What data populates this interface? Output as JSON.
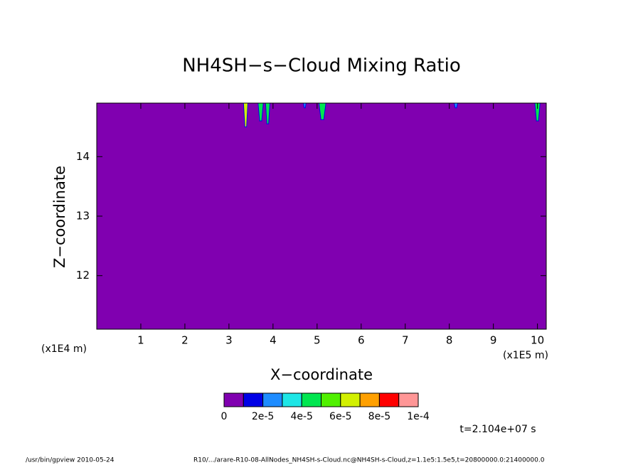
{
  "chart_data": {
    "type": "contour",
    "title": "NH4SH−s−Cloud Mixing Ratio",
    "x_label": "X−coordinate",
    "y_label": "Z−coordinate",
    "x_unit": "(x1E5 m)",
    "y_unit": "(x1E4 m)",
    "time_label": "t=2.104e+07 s",
    "footer_left": "/usr/bin/gpview   2010-05-24",
    "footer_right": "R10/.../arare-R10-08-AllNodes_NH4SH-s-Cloud.nc@NH4SH-s-Cloud,z=1.1e5:1.5e5,t=20800000.0:21400000.0",
    "xlim": [
      0,
      10.2
    ],
    "xticks": [
      1,
      2,
      3,
      4,
      5,
      6,
      7,
      8,
      9,
      10
    ],
    "ylim": [
      11.1,
      14.9
    ],
    "yticks": [
      12,
      13,
      14
    ],
    "colorbar": {
      "levels": [
        0,
        1e-05,
        2e-05,
        3e-05,
        4e-05,
        5e-05,
        6e-05,
        7e-05,
        8e-05,
        9e-05,
        0.0001
      ],
      "colors": [
        "#8000b0",
        "#0000e6",
        "#1e8cff",
        "#1ee6e6",
        "#00e650",
        "#50f000",
        "#d2f000",
        "#ffa000",
        "#ff0000",
        "#ff9696"
      ],
      "ticks": [
        0,
        {
          "value": 2e-05,
          "label": "2e-5"
        },
        {
          "value": 4e-05,
          "label": "4e-5"
        },
        {
          "value": 6e-05,
          "label": "6e-5"
        },
        {
          "value": 8e-05,
          "label": "8e-5"
        },
        {
          "value": 0.0001,
          "label": "1e-4"
        }
      ]
    },
    "background_value": 0,
    "patches": {
      "x": [
        3.38,
        3.72,
        3.88,
        4.72,
        5.12,
        8.15,
        10.0
      ],
      "width": [
        0.1,
        0.12,
        0.1,
        0.06,
        0.16,
        0.08,
        0.12
      ],
      "z_min": [
        14.5,
        14.6,
        14.55,
        14.82,
        14.62,
        14.82,
        14.6
      ],
      "values": [
        6e-05,
        4e-05,
        4e-05,
        2e-05,
        4e-05,
        2e-05,
        4e-05
      ]
    }
  }
}
